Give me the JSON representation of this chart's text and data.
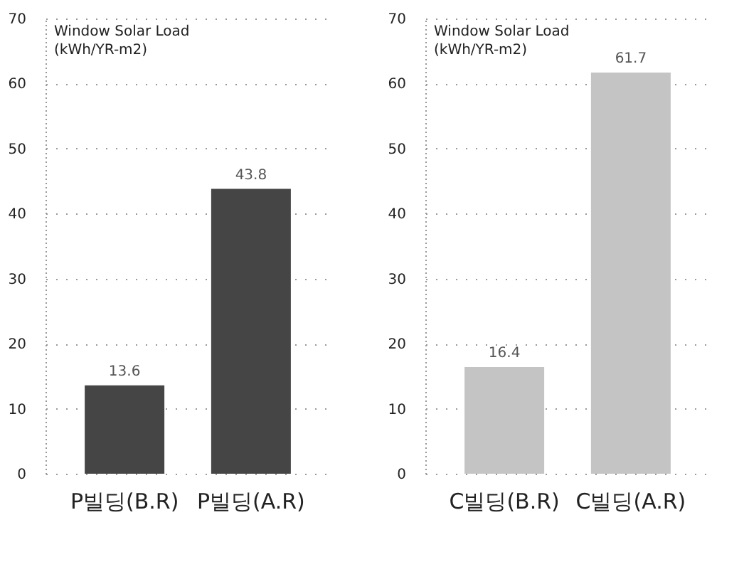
{
  "chart_data": [
    {
      "type": "bar",
      "ylabel": "Window Solar Load\n(kWh/YR-m2)",
      "categories": [
        "P빌딩(B.R)",
        "P빌딩(A.R)"
      ],
      "values": [
        13.6,
        43.8
      ],
      "color": "#454545",
      "ylim": [
        0,
        70
      ],
      "yticks": [
        0,
        10,
        20,
        30,
        40,
        50,
        60,
        70
      ],
      "grid": "y",
      "data_labels": true
    },
    {
      "type": "bar",
      "ylabel": "Window Solar Load\n(kWh/YR-m2)",
      "categories": [
        "C빌딩(B.R)",
        "C빌딩(A.R)"
      ],
      "values": [
        16.4,
        61.7
      ],
      "color": "#c4c4c4",
      "ylim": [
        0,
        70
      ],
      "yticks": [
        0,
        10,
        20,
        30,
        40,
        50,
        60,
        70
      ],
      "grid": "y",
      "data_labels": true
    }
  ]
}
